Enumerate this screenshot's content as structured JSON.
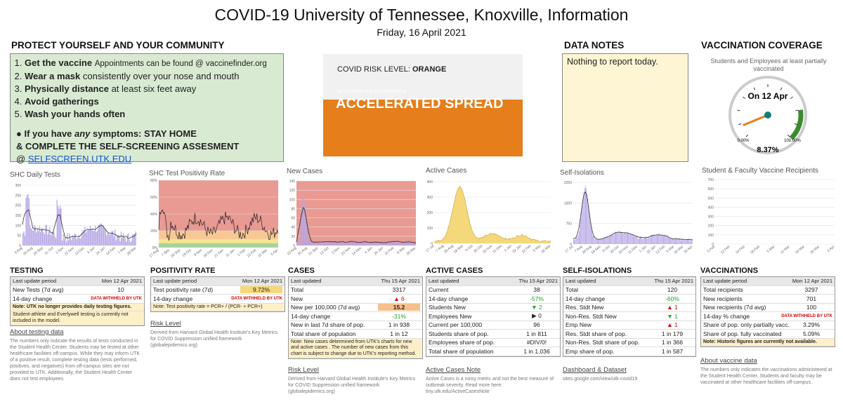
{
  "header": {
    "title": "COVID-19 University of Tennessee, Knoxville, Information",
    "date": "Friday, 16 April 2021"
  },
  "protect": {
    "heading": "PROTECT YOURSELF AND YOUR COMMUNITY",
    "i1b": "Get the vaccine",
    "i1": "Appointments can be found @ vaccinefinder.org",
    "i2b": "Wear a mask",
    "i2": "consistently over your nose and mouth",
    "i3b": "Physically distance",
    "i3": "at least six feet away",
    "i4b": "Avoid gatherings",
    "i5b": "Wash your hands often",
    "s1": "● If you have",
    "s1i": "any",
    "s1b": "symptoms: STAY HOME",
    "s2": "& COMPLETE THE SELF-SCREENING ASSESMENT",
    "s3": "@",
    "s3l": "SELFSCREEN.UTK.EDU"
  },
  "risk": {
    "lvl": "COVID RISK LEVEL:",
    "lvlb": "ORANGE",
    "small": "10-24 CASES PER 100,000 PEOPLE",
    "big": "ACCELERATED SPREAD"
  },
  "notes": {
    "heading": "DATA NOTES",
    "text": "Nothing to report today."
  },
  "vaccine": {
    "heading": "VACCINATION COVERAGE",
    "subtitle": "Students and Employees at least partially vaccinated",
    "label": "On 12 Apr",
    "min": "0.00%",
    "max": "100.00%",
    "value": "8.37%",
    "fraction": 0.0837
  },
  "colors": {
    "accent": "#e57e1b",
    "purple": "#b7a6e6",
    "yellow": "#f5d87a",
    "green_box": "#d9ead3",
    "notes_bg": "#fdf5d3"
  },
  "charts": {
    "tests": {
      "title": "SHC Daily Tests",
      "yticks": [
        "300",
        "250",
        "200",
        "150",
        "100",
        "50",
        "0"
      ],
      "xticks": [
        "9 Aug",
        "30 Aug",
        "20 Sep",
        "11 Oct",
        "1 Nov",
        "22 Nov",
        "13 Dec",
        "3 Jan",
        "24 Jan",
        "14 Feb",
        "7 Mar",
        "28 Mar"
      ]
    },
    "positivity": {
      "title": "SHC Test Positivity Rate",
      "yticks": [
        "80%",
        "60%",
        "40%",
        "20%",
        "0%"
      ],
      "xticks": [
        "17 Aug",
        "7 Sep",
        "28 Sep",
        "19 Oct",
        "9 Nov",
        "30 Nov",
        "21 Dec",
        "11 Jan",
        "1 Feb",
        "22 Feb",
        "15 Mar",
        "5 Apr"
      ]
    },
    "newcases": {
      "title": "New Cases",
      "yticks": [
        "140",
        "120",
        "100",
        "80",
        "60",
        "40",
        "20",
        "0"
      ],
      "xticks": [
        "10 Aug",
        "31 Aug",
        "21 Sep",
        "12 Oct",
        "2 Nov",
        "23 Nov",
        "14 Dec",
        "4 Jan",
        "25 Jan",
        "15 Feb",
        "8 Mar",
        "29 Mar"
      ]
    },
    "active": {
      "title": "Active Cases",
      "yticks": [
        "400",
        "300",
        "200",
        "100",
        "0"
      ],
      "xticks": [
        "17 Jul",
        "7 Aug",
        "28 Aug",
        "18 Sep",
        "9 Oct",
        "30 Oct",
        "20 Nov",
        "11 Dec",
        "1 Jan",
        "22 Jan",
        "12 Feb",
        "5 Mar",
        "26 Mar"
      ]
    },
    "iso": {
      "title": "Self-Isolations",
      "yticks": [
        "2250",
        "1500",
        "750",
        "0"
      ],
      "xticks": [
        "17 Jul",
        "7 Aug",
        "28 Aug",
        "18 Sep",
        "9 Oct",
        "30 Oct",
        "20 Nov",
        "11 Dec",
        "1 Jan",
        "22 Jan",
        "12 Feb",
        "5 Mar",
        "26 Mar",
        "16 Apr"
      ]
    },
    "vaccinerec": {
      "title": "Student & Faculty Vaccine Recipients",
      "yticks": [
        "700",
        "600",
        "500",
        "400",
        "300",
        "200",
        "100",
        "0"
      ],
      "xticks": [
        "5 Feb",
        "12 Feb",
        "19 Feb",
        "26 Feb",
        "5 Mar",
        "12 Mar",
        "19 Mar",
        "26 Mar",
        "2 Apr"
      ]
    }
  },
  "testing": {
    "heading": "TESTING",
    "h1": "Last update period",
    "h2": "Mon 12 Apr 2021",
    "r1": "New Tests (7d avg)",
    "r1v": "10",
    "r2": "14-day change",
    "r2v": "DATA WITHHELD BY UTK",
    "note1": "Note: UTK no longer provides daily testing figures.",
    "note2": "Student-athlete and Everlywell testing is currently not included in the model.",
    "link": "About testing data",
    "desc": "The numbers only indicate the results of tests conducted in the Student Health Center. Students may be tested at other healthcare facilities off-campus. While they may inform UTK of a positive result, complete testing data (tests performed, positives, and negatives) from off-campus sites are not provided to UTK. Additionally, the Student Health Center does not test employees."
  },
  "positivity": {
    "heading": "POSITIVITY RATE",
    "h1": "Last update period",
    "h2": "Mon 12 Apr 2021",
    "r1": "Test positivity rate (7d)",
    "r1v": "9.72%",
    "r2": "14-day change",
    "r2v": "DATA WITHHELD BY UTK",
    "note": "Note: Test positivity rate = PCR+ / (PCR- + PCR+)",
    "link": "Risk Level",
    "desc": "Derived from Harvard Global Health Institute's Key Metrics for COVID Suppression unified framework (globalepidemics.org)"
  },
  "cases": {
    "heading": "CASES",
    "h1": "Last updated",
    "h2": "Thu 15 Apr 2021",
    "rows": [
      [
        "Total",
        "3317"
      ],
      [
        "New",
        "▲ 6"
      ],
      [
        "New per 100,000 (7d avg)",
        "15.2"
      ],
      [
        "14-day change",
        "-31%"
      ],
      [
        "New in last 7d share of pop.",
        "1 in 938"
      ],
      [
        "Total share of population",
        "1 in 12"
      ]
    ],
    "note": "Note: New cases determined from UTK's charts for new and active cases . The number of new cases from this chart is subject to change due to UTK's reporting method.",
    "link": "Risk Level",
    "desc": "Derived from Harvard Global Health Institute's Key Metrics for COVID Suppression unified framework (globalepidemics.org)"
  },
  "active": {
    "heading": "ACTIVE CASES",
    "h1": "Last updated",
    "h2": "Thu 15 Apr 2021",
    "rows": [
      [
        "Current",
        "38"
      ],
      [
        "14-day change",
        "-57%"
      ],
      [
        "Students New",
        "▼ 2"
      ],
      [
        "Employees New",
        "▶ 0"
      ],
      [
        "Current per 100,000",
        "96"
      ],
      [
        "Students share of pop.",
        "1 in 811"
      ],
      [
        "Employees share of pop.",
        "#DIV/0!"
      ],
      [
        "Total share of population",
        "1 in 1,036"
      ]
    ],
    "link": "Active Cases Note",
    "desc": "Active Cases is a noisy metric and not the best measure of outbreak severity. Read more here: tiny.utk.edu/ActiveCasesNote"
  },
  "iso": {
    "heading": "SELF-ISOLATIONS",
    "h1": "Last updated",
    "h2": "Thu 15 Apr 2021",
    "rows": [
      [
        "Total",
        "120"
      ],
      [
        "14-day change",
        "-60%"
      ],
      [
        "Res. Stdt New",
        "▲ 1"
      ],
      [
        "Non-Res. Stdt New",
        "▼ 1"
      ],
      [
        "Emp New",
        "▲ 1"
      ],
      [
        "Res. Stdt share of pop.",
        "1 in 179"
      ],
      [
        "Non-Res. Stdt share of pop.",
        "1 in 366"
      ],
      [
        "Emp share of pop.",
        "1 in 587"
      ]
    ],
    "link": "Dashboard & Dataset",
    "desc": "sites.google.com/view/utk-covid19"
  },
  "vacc": {
    "heading": "VACCINATIONS",
    "h1": "Last update period",
    "h2": "Mon 12 Apr 2021",
    "rows": [
      [
        "Total recipients",
        "3297"
      ],
      [
        "New recipients",
        "701"
      ],
      [
        "New recipients (7d avg)",
        "100"
      ],
      [
        "14-day % change",
        "DATA WITHHELD BY UTK"
      ],
      [
        "Share of pop. only partially vacc.",
        "3.29%"
      ],
      [
        "Share of pop. fully vaccinated",
        "5.09%"
      ]
    ],
    "note": "Note: Historic figures are currently not available.",
    "link": "About vaccine data",
    "desc": "The numbers only indicates the vaccinations administered at the Student Health Center. Students and faculty may be vaccinated at other healthcare facilities off-campus."
  }
}
